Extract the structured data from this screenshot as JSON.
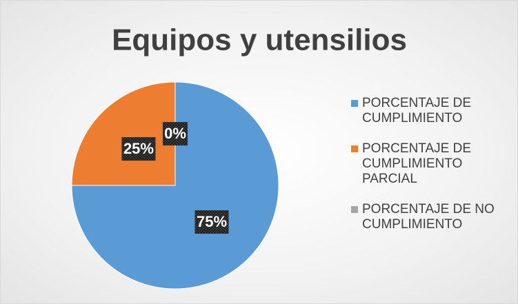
{
  "chart_data": {
    "type": "pie",
    "title": "Equipos y utensilios",
    "categories": [
      "PORCENTAJE DE CUMPLIMIENTO",
      "PORCENTAJE DE CUMPLIMIENTO PARCIAL",
      "PORCENTAJE DE NO CUMPLIMIENTO"
    ],
    "values": [
      75,
      25,
      0
    ],
    "value_labels": [
      "75%",
      "25%",
      "0%"
    ],
    "colors": [
      "#5b9bd5",
      "#ed7d31",
      "#a5a5a5"
    ],
    "legend": "right"
  }
}
